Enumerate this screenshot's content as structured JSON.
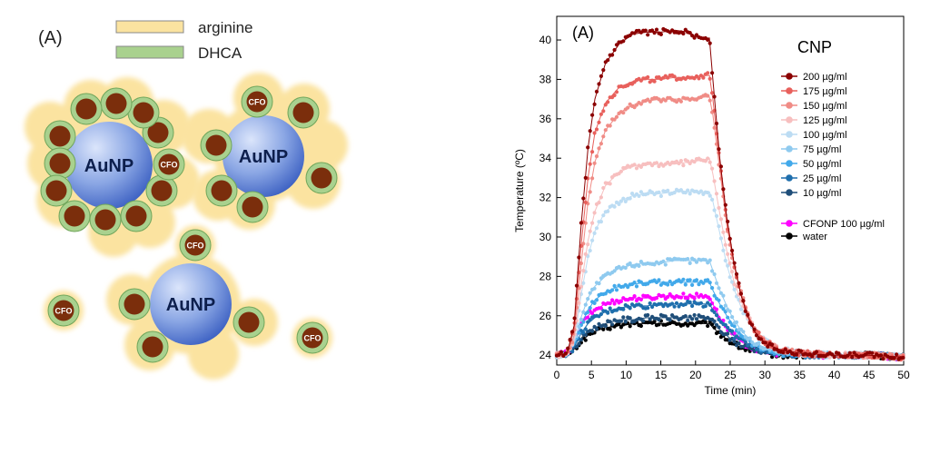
{
  "schematic": {
    "panel_label": "(A)",
    "legend": [
      {
        "label": "arginine",
        "color": "#fbe3a0"
      },
      {
        "label": "DHCA",
        "color": "#a9d18e"
      }
    ],
    "aunp_label": "AuNP",
    "cfo_label": "CFO",
    "colors": {
      "shell": "#fbe3a0",
      "coat": "#a9d18e",
      "core": "#7b2e0c",
      "aunp_light": "#dbe5fb",
      "aunp_dark": "#3e62c3"
    }
  },
  "chart_data": {
    "type": "line",
    "panel_label": "(A)",
    "title": "CNP",
    "xlabel": "Time (min)",
    "ylabel": "Temperature (ºC)",
    "xlim": [
      0,
      50
    ],
    "ylim": [
      23.5,
      41.2
    ],
    "xticks": [
      "0",
      "5",
      "10",
      "15",
      "20",
      "25",
      "30",
      "35",
      "40",
      "45",
      "50"
    ],
    "yticks": [
      "24",
      "26",
      "28",
      "30",
      "32",
      "34",
      "36",
      "38",
      "40"
    ],
    "legend_position": "top-right",
    "grid": false,
    "series": [
      {
        "name": "200 µg/ml",
        "color": "#8b0000",
        "x": [
          0,
          1.5,
          2.5,
          3.5,
          4.5,
          5.5,
          7,
          9,
          11,
          13,
          15,
          17,
          19,
          20.5,
          22,
          22.5,
          23.5,
          24.5,
          25.5,
          26.5,
          27.5,
          28.5,
          30,
          32,
          35,
          40,
          45,
          50
        ],
        "y": [
          24.0,
          24.1,
          25.5,
          30.5,
          34.5,
          37.0,
          38.8,
          39.8,
          40.3,
          40.4,
          40.4,
          40.5,
          40.4,
          40.1,
          40.1,
          38.0,
          34.0,
          31.0,
          28.8,
          27.1,
          26.0,
          25.2,
          24.6,
          24.3,
          24.1,
          24.0,
          24.0,
          23.9
        ]
      },
      {
        "name": "175 µg/ml",
        "color": "#e8605c",
        "x": [
          0,
          1.5,
          2.5,
          3.5,
          4.5,
          5.5,
          7,
          9,
          11,
          13,
          15,
          17,
          19,
          21,
          22,
          22.5,
          23.5,
          24.5,
          25.5,
          26.5,
          27.5,
          28.5,
          30,
          32,
          35,
          40,
          45,
          50
        ],
        "y": [
          24.0,
          24.1,
          25.3,
          29.5,
          33.0,
          35.3,
          36.8,
          37.6,
          37.9,
          38.0,
          38.0,
          38.1,
          38.1,
          38.2,
          38.2,
          37.0,
          33.8,
          30.8,
          28.7,
          27.2,
          26.1,
          25.3,
          24.7,
          24.3,
          24.1,
          24.0,
          24.0,
          23.9
        ]
      },
      {
        "name": "150 µg/ml",
        "color": "#f08c86",
        "x": [
          0,
          1.5,
          2.5,
          3.5,
          4.5,
          5.5,
          7,
          9,
          11,
          13,
          15,
          17,
          19,
          21,
          22,
          22.5,
          23.5,
          24.5,
          25.5,
          26.5,
          27.5,
          28.5,
          30,
          32,
          35,
          40,
          45,
          50
        ],
        "y": [
          24.0,
          24.1,
          25.0,
          28.5,
          31.8,
          33.8,
          35.4,
          36.3,
          36.7,
          36.9,
          37.0,
          37.0,
          37.0,
          37.1,
          37.1,
          36.2,
          33.4,
          30.6,
          28.6,
          27.2,
          26.1,
          25.4,
          24.7,
          24.3,
          24.1,
          24.0,
          24.0,
          23.9
        ]
      },
      {
        "name": "125 µg/ml",
        "color": "#f7bfbf",
        "x": [
          0,
          1.5,
          2.5,
          3.5,
          4.5,
          5.5,
          7,
          9,
          11,
          13,
          15,
          17,
          19,
          21,
          22,
          22.5,
          23.5,
          24.5,
          25.5,
          26.5,
          27.5,
          28.5,
          30,
          32,
          35,
          40,
          45,
          50
        ],
        "y": [
          24.0,
          24.1,
          24.8,
          27.5,
          29.8,
          31.3,
          32.6,
          33.3,
          33.6,
          33.7,
          33.7,
          33.7,
          33.8,
          33.9,
          34.0,
          33.2,
          31.2,
          29.3,
          27.8,
          26.8,
          26.0,
          25.3,
          24.7,
          24.3,
          24.1,
          24.0,
          24.0,
          23.9
        ]
      },
      {
        "name": "100 µg/ml",
        "color": "#bcdcf3",
        "x": [
          0,
          1.5,
          2.5,
          3.5,
          4.5,
          5.5,
          7,
          9,
          11,
          13,
          15,
          17,
          19,
          21,
          22,
          22.5,
          23.5,
          24.5,
          25.5,
          26.5,
          27.5,
          28.5,
          30,
          32,
          35,
          40,
          45,
          50
        ],
        "y": [
          24.0,
          24.1,
          24.7,
          27.0,
          29.0,
          30.3,
          31.3,
          31.8,
          32.1,
          32.2,
          32.2,
          32.3,
          32.3,
          32.3,
          32.3,
          31.8,
          30.2,
          28.6,
          27.4,
          26.5,
          25.8,
          25.2,
          24.7,
          24.3,
          24.1,
          24.0,
          24.0,
          23.9
        ]
      },
      {
        "name": "75 µg/ml",
        "color": "#8fcaef",
        "x": [
          0,
          1.5,
          2.5,
          3.5,
          4.5,
          5.5,
          7,
          9,
          11,
          13,
          15,
          17,
          19,
          21,
          22,
          22.5,
          23.5,
          24.5,
          25.5,
          26.5,
          27.5,
          28.5,
          30,
          32,
          35,
          40,
          45,
          50
        ],
        "y": [
          24.0,
          24.1,
          24.6,
          25.9,
          26.9,
          27.5,
          28.0,
          28.4,
          28.6,
          28.7,
          28.7,
          28.8,
          28.8,
          28.8,
          28.8,
          28.3,
          27.3,
          26.5,
          25.8,
          25.3,
          24.9,
          24.6,
          24.4,
          24.2,
          24.1,
          24.0,
          24.0,
          23.9
        ]
      },
      {
        "name": "50 µg/ml",
        "color": "#42a9ea",
        "x": [
          0,
          1.5,
          2.5,
          3.5,
          4.5,
          5.5,
          7,
          9,
          11,
          13,
          15,
          17,
          19,
          21,
          22,
          22.5,
          23.5,
          24.5,
          25.5,
          26.5,
          27.5,
          28.5,
          30,
          32,
          35,
          40,
          45,
          50
        ],
        "y": [
          24.0,
          24.1,
          24.5,
          25.5,
          26.3,
          26.8,
          27.2,
          27.5,
          27.6,
          27.7,
          27.7,
          27.7,
          27.7,
          27.7,
          27.7,
          27.3,
          26.6,
          26.0,
          25.5,
          25.1,
          24.8,
          24.5,
          24.3,
          24.1,
          24.0,
          24.0,
          24.0,
          23.9
        ]
      },
      {
        "name": "25 µg/ml",
        "color": "#1f6fad",
        "x": [
          0,
          1.5,
          2.5,
          3.5,
          4.5,
          5.5,
          7,
          9,
          11,
          13,
          15,
          17,
          19,
          21,
          22,
          22.5,
          23.5,
          24.5,
          25.5,
          26.5,
          27.5,
          28.5,
          30,
          32,
          35,
          40,
          45,
          50
        ],
        "y": [
          24.0,
          24.1,
          24.4,
          25.1,
          25.6,
          25.9,
          26.2,
          26.4,
          26.5,
          26.5,
          26.6,
          26.6,
          26.6,
          26.6,
          26.6,
          26.3,
          25.8,
          25.4,
          25.0,
          24.8,
          24.6,
          24.4,
          24.2,
          24.1,
          24.0,
          24.0,
          24.0,
          23.9
        ]
      },
      {
        "name": "10 µg/ml",
        "color": "#1f4e79",
        "x": [
          0,
          1.5,
          2.5,
          3.5,
          4.5,
          5.5,
          7,
          9,
          11,
          13,
          15,
          17,
          19,
          21,
          22,
          22.5,
          23.5,
          24.5,
          25.5,
          26.5,
          27.5,
          28.5,
          30,
          32,
          35,
          40,
          45,
          50
        ],
        "y": [
          24.0,
          24.1,
          24.3,
          24.8,
          25.2,
          25.4,
          25.6,
          25.8,
          25.8,
          25.9,
          25.9,
          25.9,
          25.9,
          25.9,
          25.9,
          25.7,
          25.3,
          25.0,
          24.7,
          24.5,
          24.4,
          24.3,
          24.2,
          24.1,
          24.0,
          24.0,
          24.0,
          23.9
        ]
      },
      {
        "name": "CFONP 100 µg/ml",
        "color": "#ff00ff",
        "x": [
          0,
          1.5,
          2.5,
          3.5,
          4.5,
          5.5,
          7,
          9,
          11,
          13,
          15,
          17,
          19,
          21,
          22,
          22.5,
          23.5,
          24.5,
          25.5,
          26.5,
          27.5,
          28.5,
          30,
          32,
          35,
          40,
          45,
          50
        ],
        "y": [
          24.0,
          24.1,
          24.6,
          25.5,
          26.0,
          26.3,
          26.6,
          26.8,
          26.9,
          26.9,
          27.0,
          27.0,
          27.0,
          27.0,
          27.0,
          26.6,
          25.9,
          25.4,
          25.0,
          24.7,
          24.5,
          24.3,
          24.2,
          24.1,
          24.0,
          24.0,
          24.0,
          23.9
        ]
      },
      {
        "name": "water",
        "color": "#000000",
        "x": [
          0,
          1.5,
          2.5,
          3.5,
          4.5,
          5.5,
          7,
          9,
          11,
          13,
          15,
          17,
          19,
          21,
          22,
          22.5,
          23.5,
          24.5,
          25.5,
          26.5,
          27.5,
          28.5,
          30,
          32,
          35,
          40,
          45,
          50
        ],
        "y": [
          24.0,
          24.1,
          24.3,
          24.7,
          25.0,
          25.2,
          25.4,
          25.5,
          25.6,
          25.6,
          25.6,
          25.6,
          25.6,
          25.6,
          25.6,
          25.4,
          25.1,
          24.8,
          24.6,
          24.4,
          24.3,
          24.2,
          24.1,
          24.0,
          24.0,
          24.0,
          24.0,
          23.9
        ]
      }
    ]
  }
}
